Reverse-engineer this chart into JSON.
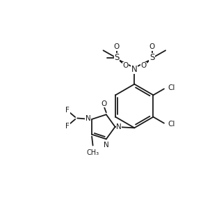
{
  "bg_color": "#ffffff",
  "line_color": "#1a1a1a",
  "line_width": 1.3,
  "font_size": 7.5,
  "fig_width": 3.15,
  "fig_height": 3.04,
  "xlim": [
    0,
    10
  ],
  "ylim": [
    0,
    10
  ]
}
